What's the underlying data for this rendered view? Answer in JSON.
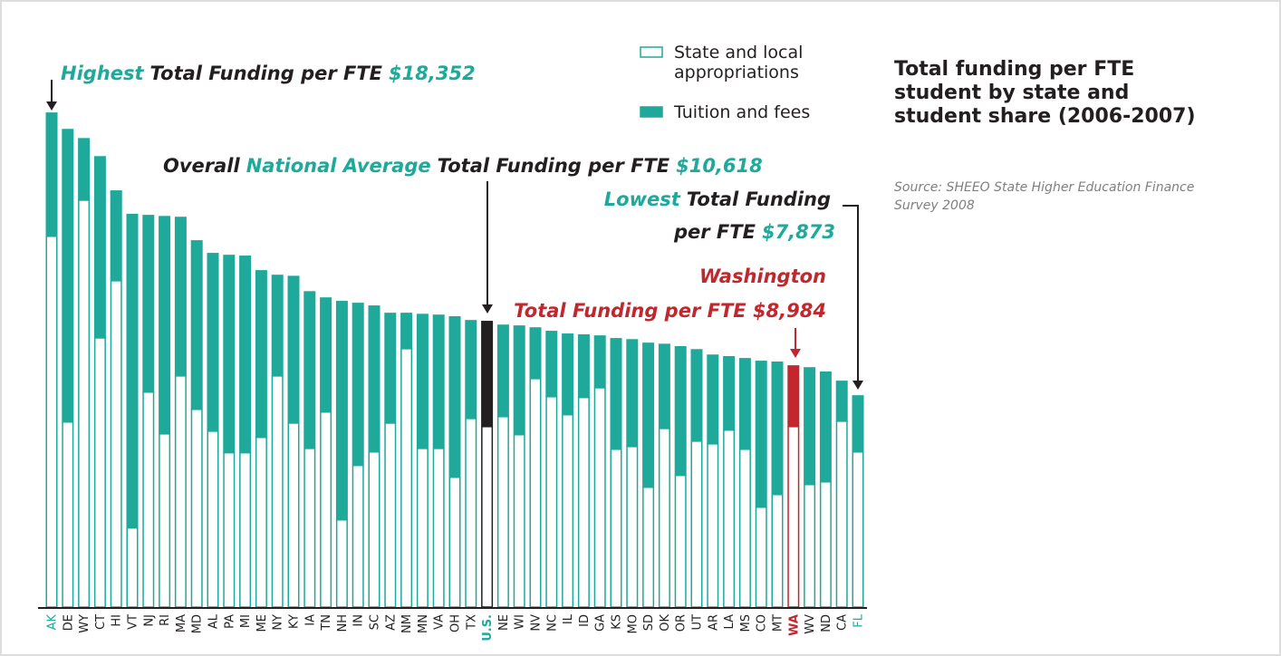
{
  "chart_data": {
    "type": "stacked_bar",
    "title": "Total funding per FTE student by state and student share (2006-2007)",
    "source": "Source:  SHEEO State Higher Education Finance Survey 2008",
    "categories": [
      "AK",
      "DE",
      "WY",
      "CT",
      "HI",
      "VT",
      "NJ",
      "RI",
      "MA",
      "MD",
      "AL",
      "PA",
      "MI",
      "ME",
      "NY",
      "KY",
      "IA",
      "TN",
      "NH",
      "IN",
      "SC",
      "AZ",
      "NM",
      "MN",
      "VA",
      "OH",
      "TX",
      "U.S.",
      "NE",
      "WI",
      "NV",
      "NC",
      "IL",
      "ID",
      "GA",
      "KS",
      "MO",
      "SD",
      "OK",
      "OR",
      "UT",
      "AR",
      "LA",
      "MS",
      "CO",
      "MT",
      "WA",
      "WV",
      "ND",
      "CA",
      "FL"
    ],
    "series": [
      {
        "name": "State and local appropriations",
        "color": "#1fa99a",
        "fill": "#ffffff",
        "values": [
          13780,
          6890,
          15120,
          10010,
          12130,
          2960,
          8000,
          6450,
          8600,
          7360,
          6550,
          5750,
          5750,
          6320,
          8600,
          6850,
          5910,
          7260,
          3260,
          5280,
          5780,
          6850,
          9610,
          5910,
          5910,
          4840,
          7020,
          6720,
          7090,
          6420,
          8500,
          7830,
          7160,
          7800,
          8160,
          5880,
          5980,
          4470,
          6650,
          4910,
          6180,
          6080,
          6590,
          5880,
          3730,
          4200,
          6720,
          4570,
          4670,
          6920,
          5780
        ]
      },
      {
        "name": "Tuition and fees",
        "color": "#1fa99a",
        "fill": "#1fa99a",
        "values": [
          4570,
          10850,
          2280,
          6720,
          3330,
          11630,
          6550,
          8060,
          5880,
          6250,
          6590,
          7320,
          7290,
          6180,
          3730,
          5440,
          5810,
          4230,
          8100,
          6010,
          5410,
          4070,
          1310,
          4970,
          4940,
          5950,
          3630,
          3900,
          3390,
          4030,
          1880,
          2420,
          2990,
          2320,
          1920,
          4100,
          3960,
          5340,
          3120,
          4770,
          3390,
          3290,
          2720,
          3360,
          5410,
          4910,
          2250,
          4330,
          4070,
          1480,
          2080
        ]
      }
    ],
    "bar_highlights": [
      {
        "index": 27,
        "color": "#231f20"
      },
      {
        "index": 46,
        "color": "#c1272d"
      }
    ],
    "label_colors": [
      {
        "index": 0,
        "color": "#1fa99a",
        "bold": false
      },
      {
        "index": 27,
        "color": "#1fa99a",
        "bold": true
      },
      {
        "index": 46,
        "color": "#c1272d",
        "bold": true
      },
      {
        "index": 50,
        "color": "#1fa99a",
        "bold": false
      }
    ],
    "ylim": [
      0,
      20000
    ],
    "annotations": [
      {
        "lines": [
          {
            "parts": [
              {
                "text": "Highest",
                "color": "#1fa99a"
              },
              {
                "text": "Total Funding per FTE",
                "color": "#231f20"
              },
              {
                "text": "$18,352",
                "color": "#1fa99a"
              }
            ]
          }
        ]
      },
      {
        "lines": [
          {
            "parts": [
              {
                "text": "Overall",
                "color": "#231f20"
              },
              {
                "text": "National Average",
                "color": "#1fa99a"
              },
              {
                "text": "Total Funding per FTE",
                "color": "#231f20"
              },
              {
                "text": "$10,618",
                "color": "#1fa99a"
              }
            ]
          }
        ]
      },
      {
        "lines": [
          {
            "parts": [
              {
                "text": "Lowest",
                "color": "#1fa99a"
              },
              {
                "text": "Total Funding",
                "color": "#231f20"
              }
            ]
          },
          {
            "parts": [
              {
                "text": "per FTE",
                "color": "#231f20"
              },
              {
                "text": "$7,873",
                "color": "#1fa99a"
              }
            ]
          }
        ]
      },
      {
        "lines": [
          {
            "parts": [
              {
                "text": "Washington",
                "color": "#c1272d"
              }
            ]
          },
          {
            "parts": [
              {
                "text": "Total Funding per FTE $8,984",
                "color": "#c1272d"
              }
            ]
          }
        ]
      }
    ]
  }
}
